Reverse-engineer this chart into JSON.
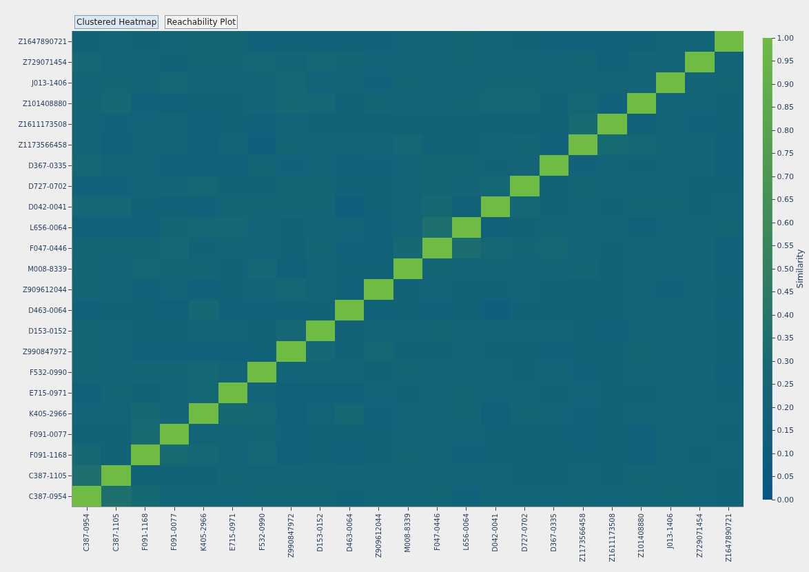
{
  "chart_data": {
    "type": "heatmap",
    "annotations": [
      "Clustered Heatmap",
      "Reachability Plot"
    ],
    "clabel": "Similarity",
    "categories": [
      "C387-0954",
      "C387-1105",
      "F091-1168",
      "F091-0077",
      "K405-2966",
      "E715-0971",
      "F532-0990",
      "Z990847972",
      "D153-0152",
      "D463-0064",
      "Z909612044",
      "M008-8339",
      "F047-0446",
      "L656-0064",
      "D042-0041",
      "D727-0702",
      "D367-0335",
      "Z1173566458",
      "Z1611173508",
      "Z101408880",
      "J013-1406",
      "Z729071454",
      "Z1647890721"
    ],
    "y_categories": [
      "Z1647890721",
      "Z729071454",
      "J013-1406",
      "Z101408880",
      "Z1611173508",
      "Z1173566458",
      "D367-0335",
      "D727-0702",
      "D042-0041",
      "L656-0064",
      "F047-0446",
      "M008-8339",
      "Z909612044",
      "D463-0064",
      "D153-0152",
      "Z990847972",
      "F532-0990",
      "E715-0971",
      "K405-2966",
      "F091-0077",
      "F091-1168",
      "C387-1105",
      "C387-0954"
    ],
    "cells": [
      [
        0.2,
        0.21,
        0.2,
        0.21,
        0.24,
        0.24,
        0.18,
        0.19,
        0.19,
        0.19,
        0.18,
        0.22,
        0.21,
        0.24,
        0.21,
        0.2,
        0.18,
        0.18,
        0.18,
        0.19,
        0.22,
        0.21,
        1
      ],
      [
        0.26,
        0.21,
        0.21,
        0.2,
        0.24,
        0.24,
        0.25,
        0.22,
        0.25,
        0.23,
        0.21,
        0.22,
        0.22,
        0.23,
        0.21,
        0.21,
        0.22,
        0.23,
        0.19,
        0.22,
        0.22,
        1,
        0.21
      ],
      [
        0.22,
        0.24,
        0.22,
        0.25,
        0.21,
        0.21,
        0.22,
        0.25,
        0.21,
        0.21,
        0.18,
        0.23,
        0.22,
        0.22,
        0.24,
        0.24,
        0.22,
        0.22,
        0.22,
        0.22,
        1,
        0.22,
        0.23
      ],
      [
        0.23,
        0.27,
        0.18,
        0.17,
        0.2,
        0.2,
        0.21,
        0.27,
        0.25,
        0.2,
        0.24,
        0.22,
        0.22,
        0.23,
        0.25,
        0.25,
        0.2,
        0.26,
        0.18,
        1,
        0.21,
        0.21,
        0.2
      ],
      [
        0.22,
        0.18,
        0.21,
        0.22,
        0.17,
        0.2,
        0.19,
        0.21,
        0.2,
        0.2,
        0.2,
        0.2,
        0.2,
        0.2,
        0.2,
        0.2,
        0.2,
        0.3,
        1,
        0.19,
        0.22,
        0.18,
        0.2
      ],
      [
        0.22,
        0.19,
        0.21,
        0.21,
        0.17,
        0.21,
        0.16,
        0.23,
        0.21,
        0.22,
        0.22,
        0.25,
        0.2,
        0.2,
        0.21,
        0.24,
        0.18,
        1,
        0.3,
        0.25,
        0.22,
        0.22,
        0.19
      ],
      [
        0.25,
        0.21,
        0.21,
        0.19,
        0.19,
        0.19,
        0.23,
        0.18,
        0.21,
        0.19,
        0.18,
        0.22,
        0.24,
        0.23,
        0.2,
        0.22,
        1,
        0.18,
        0.21,
        0.2,
        0.22,
        0.21,
        0.19
      ],
      [
        0.18,
        0.18,
        0.22,
        0.21,
        0.26,
        0.2,
        0.2,
        0.23,
        0.24,
        0.2,
        0.2,
        0.22,
        0.24,
        0.22,
        0.25,
        1,
        0.2,
        0.23,
        0.21,
        0.22,
        0.22,
        0.2,
        0.2
      ],
      [
        0.25,
        0.25,
        0.2,
        0.19,
        0.18,
        0.23,
        0.23,
        0.24,
        0.24,
        0.15,
        0.2,
        0.22,
        0.27,
        0.19,
        1,
        0.25,
        0.2,
        0.22,
        0.2,
        0.23,
        0.23,
        0.2,
        0.21
      ],
      [
        0.17,
        0.17,
        0.18,
        0.24,
        0.26,
        0.26,
        0.21,
        0.2,
        0.22,
        0.21,
        0.18,
        0.22,
        0.35,
        1,
        0.19,
        0.2,
        0.22,
        0.21,
        0.21,
        0.19,
        0.21,
        0.21,
        0.24
      ],
      [
        0.24,
        0.23,
        0.23,
        0.25,
        0.2,
        0.22,
        0.21,
        0.2,
        0.24,
        0.18,
        0.19,
        0.27,
        1,
        0.33,
        0.26,
        0.24,
        0.25,
        0.21,
        0.2,
        0.22,
        0.22,
        0.21,
        0.19
      ],
      [
        0.23,
        0.21,
        0.25,
        0.24,
        0.23,
        0.2,
        0.25,
        0.19,
        0.22,
        0.2,
        0.2,
        1,
        0.24,
        0.22,
        0.22,
        0.22,
        0.22,
        0.24,
        0.2,
        0.22,
        0.22,
        0.21,
        0.19
      ],
      [
        0.24,
        0.22,
        0.19,
        0.21,
        0.17,
        0.2,
        0.21,
        0.25,
        0.22,
        0.19,
        1,
        0.2,
        0.21,
        0.2,
        0.2,
        0.22,
        0.2,
        0.2,
        0.2,
        0.21,
        0.18,
        0.21,
        0.2
      ],
      [
        0.18,
        0.2,
        0.2,
        0.19,
        0.27,
        0.18,
        0.18,
        0.19,
        0.2,
        1,
        0.19,
        0.2,
        0.18,
        0.2,
        0.15,
        0.2,
        0.2,
        0.2,
        0.2,
        0.22,
        0.21,
        0.22,
        0.19
      ],
      [
        0.24,
        0.21,
        0.2,
        0.2,
        0.21,
        0.21,
        0.2,
        0.26,
        1,
        0.2,
        0.22,
        0.21,
        0.24,
        0.22,
        0.22,
        0.22,
        0.21,
        0.2,
        0.19,
        0.22,
        0.22,
        0.21,
        0.2
      ],
      [
        0.24,
        0.21,
        0.17,
        0.18,
        0.17,
        0.17,
        0.2,
        1,
        0.25,
        0.2,
        0.25,
        0.2,
        0.2,
        0.22,
        0.2,
        0.2,
        0.18,
        0.2,
        0.2,
        0.24,
        0.22,
        0.21,
        0.2
      ],
      [
        0.24,
        0.21,
        0.24,
        0.24,
        0.25,
        0.22,
        1,
        0.21,
        0.22,
        0.21,
        0.2,
        0.23,
        0.21,
        0.21,
        0.22,
        0.2,
        0.22,
        0.18,
        0.2,
        0.22,
        0.21,
        0.22,
        0.19
      ],
      [
        0.19,
        0.24,
        0.2,
        0.22,
        0.25,
        1,
        0.21,
        0.17,
        0.19,
        0.19,
        0.21,
        0.2,
        0.22,
        0.23,
        0.21,
        0.21,
        0.2,
        0.21,
        0.2,
        0.2,
        0.21,
        0.21,
        0.2
      ],
      [
        0.21,
        0.21,
        0.27,
        0.22,
        1,
        0.28,
        0.25,
        0.19,
        0.21,
        0.27,
        0.18,
        0.22,
        0.21,
        0.24,
        0.19,
        0.23,
        0.21,
        0.18,
        0.2,
        0.22,
        0.22,
        0.22,
        0.22
      ],
      [
        0.2,
        0.2,
        0.3,
        1,
        0.21,
        0.22,
        0.24,
        0.18,
        0.2,
        0.2,
        0.2,
        0.21,
        0.22,
        0.22,
        0.2,
        0.2,
        0.2,
        0.18,
        0.2,
        0.18,
        0.22,
        0.21,
        0.2
      ],
      [
        0.27,
        0.2,
        1,
        0.3,
        0.26,
        0.21,
        0.25,
        0.17,
        0.2,
        0.19,
        0.2,
        0.23,
        0.21,
        0.18,
        0.2,
        0.2,
        0.2,
        0.2,
        0.2,
        0.17,
        0.22,
        0.2,
        0.21
      ],
      [
        0.35,
        1,
        0.2,
        0.2,
        0.2,
        0.24,
        0.22,
        0.22,
        0.21,
        0.21,
        0.22,
        0.22,
        0.21,
        0.21,
        0.22,
        0.2,
        0.2,
        0.21,
        0.2,
        0.24,
        0.22,
        0.21,
        0.2
      ],
      [
        1,
        0.35,
        0.28,
        0.22,
        0.22,
        0.21,
        0.24,
        0.24,
        0.24,
        0.2,
        0.22,
        0.22,
        0.23,
        0.18,
        0.22,
        0.22,
        0.21,
        0.22,
        0.21,
        0.22,
        0.24,
        0.21,
        0.2
      ]
    ],
    "clim": [
      0,
      1
    ],
    "cticks": [
      {
        "value": 0,
        "label": "0.00"
      },
      {
        "value": 0.05,
        "label": "0.05"
      },
      {
        "value": 0.1,
        "label": "0.10"
      },
      {
        "value": 0.15,
        "label": "0.15"
      },
      {
        "value": 0.2,
        "label": "0.20"
      },
      {
        "value": 0.25,
        "label": "0.25"
      },
      {
        "value": 0.3,
        "label": "0.30"
      },
      {
        "value": 0.35,
        "label": "0.35"
      },
      {
        "value": 0.4,
        "label": "0.40"
      },
      {
        "value": 0.45,
        "label": "0.45"
      },
      {
        "value": 0.5,
        "label": "0.50"
      },
      {
        "value": 0.55,
        "label": "0.55"
      },
      {
        "value": 0.6,
        "label": "0.60"
      },
      {
        "value": 0.65,
        "label": "0.65"
      },
      {
        "value": 0.7,
        "label": "0.70"
      },
      {
        "value": 0.75,
        "label": "0.75"
      },
      {
        "value": 0.8,
        "label": "0.80"
      },
      {
        "value": 0.85,
        "label": "0.85"
      },
      {
        "value": 0.9,
        "label": "0.90"
      },
      {
        "value": 0.95,
        "label": "0.95"
      },
      {
        "value": 1,
        "label": "1.00"
      }
    ]
  }
}
